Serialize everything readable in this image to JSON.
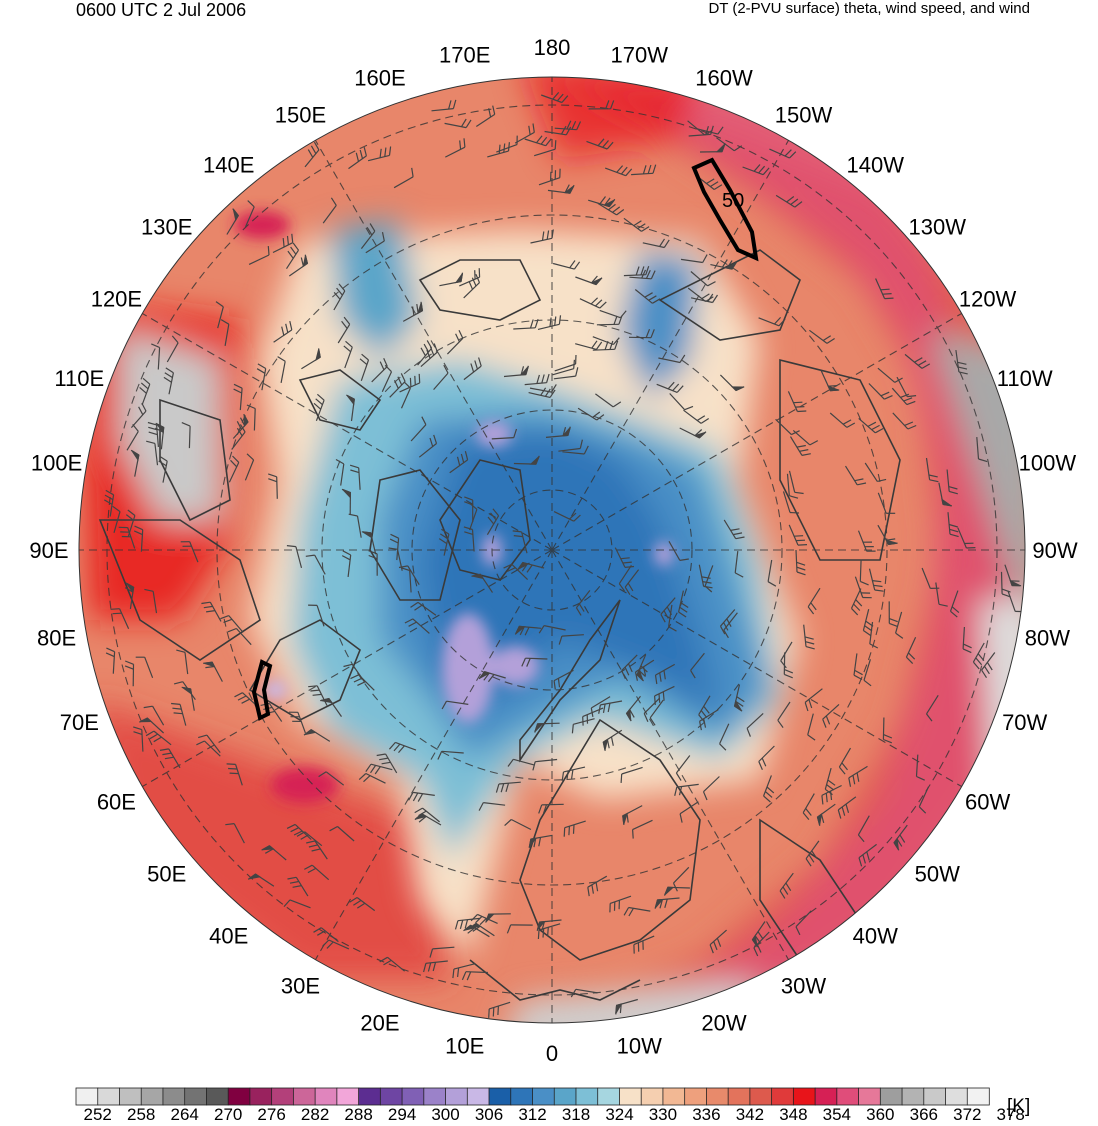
{
  "header": {
    "time_title": "0600 UTC 2 Jul 2006",
    "field_title": "DT (2-PVU surface) theta, wind speed, and wind"
  },
  "map": {
    "projection": "north-polar-stereographic",
    "longitude_labels": [
      {
        "lon": 180,
        "text": "180"
      },
      {
        "lon": 170,
        "text": "170E"
      },
      {
        "lon": 160,
        "text": "160E"
      },
      {
        "lon": 150,
        "text": "150E"
      },
      {
        "lon": 140,
        "text": "140E"
      },
      {
        "lon": 130,
        "text": "130E"
      },
      {
        "lon": 120,
        "text": "120E"
      },
      {
        "lon": 110,
        "text": "110E"
      },
      {
        "lon": 100,
        "text": "100E"
      },
      {
        "lon": 90,
        "text": "90E"
      },
      {
        "lon": 80,
        "text": "80E"
      },
      {
        "lon": 70,
        "text": "70E"
      },
      {
        "lon": 60,
        "text": "60E"
      },
      {
        "lon": 50,
        "text": "50E"
      },
      {
        "lon": 40,
        "text": "40E"
      },
      {
        "lon": 30,
        "text": "30E"
      },
      {
        "lon": 20,
        "text": "20E"
      },
      {
        "lon": 10,
        "text": "10E"
      },
      {
        "lon": 0,
        "text": "0"
      },
      {
        "lon": -10,
        "text": "10W"
      },
      {
        "lon": -20,
        "text": "20W"
      },
      {
        "lon": -30,
        "text": "30W"
      },
      {
        "lon": -40,
        "text": "40W"
      },
      {
        "lon": -50,
        "text": "50W"
      },
      {
        "lon": -60,
        "text": "60W"
      },
      {
        "lon": -70,
        "text": "70W"
      },
      {
        "lon": -80,
        "text": "80W"
      },
      {
        "lon": -90,
        "text": "90W"
      },
      {
        "lon": -100,
        "text": "100W"
      },
      {
        "lon": -110,
        "text": "110W"
      },
      {
        "lon": -120,
        "text": "120W"
      },
      {
        "lon": -130,
        "text": "130W"
      },
      {
        "lon": -140,
        "text": "140W"
      },
      {
        "lon": -150,
        "text": "150W"
      },
      {
        "lon": -160,
        "text": "160W"
      },
      {
        "lon": -170,
        "text": "170W"
      }
    ],
    "contour_label": "50"
  },
  "colorbar": {
    "unit": "[K]",
    "colors": [
      "#f0f0f0",
      "#d9d9d9",
      "#bfbfbf",
      "#a6a6a6",
      "#8c8c8c",
      "#737373",
      "#595959",
      "#800040",
      "#99225e",
      "#b3407a",
      "#cc6699",
      "#e085bd",
      "#f2a6d9",
      "#5c2d91",
      "#6e45a3",
      "#8060b5",
      "#9b82c9",
      "#b3a0d9",
      "#c9b8e6",
      "#1a5fa8",
      "#2e75b8",
      "#4a8fc6",
      "#5aa5c9",
      "#7dbfd6",
      "#a6d6e0",
      "#f7e1c8",
      "#f5cfb0",
      "#f2b894",
      "#eea07d",
      "#e88a6b",
      "#e3735c",
      "#dd5a4d",
      "#e03a3a",
      "#e8141a",
      "#d62055",
      "#e04d7a",
      "#e67899",
      "#9e9e9e",
      "#b3b3b3",
      "#c9c9c9",
      "#dedede",
      "#f2f2f2"
    ],
    "tick_labels": [
      "252",
      "258",
      "264",
      "270",
      "276",
      "282",
      "288",
      "294",
      "300",
      "306",
      "312",
      "318",
      "324",
      "330",
      "336",
      "342",
      "348",
      "354",
      "360",
      "366",
      "372",
      "378"
    ]
  }
}
